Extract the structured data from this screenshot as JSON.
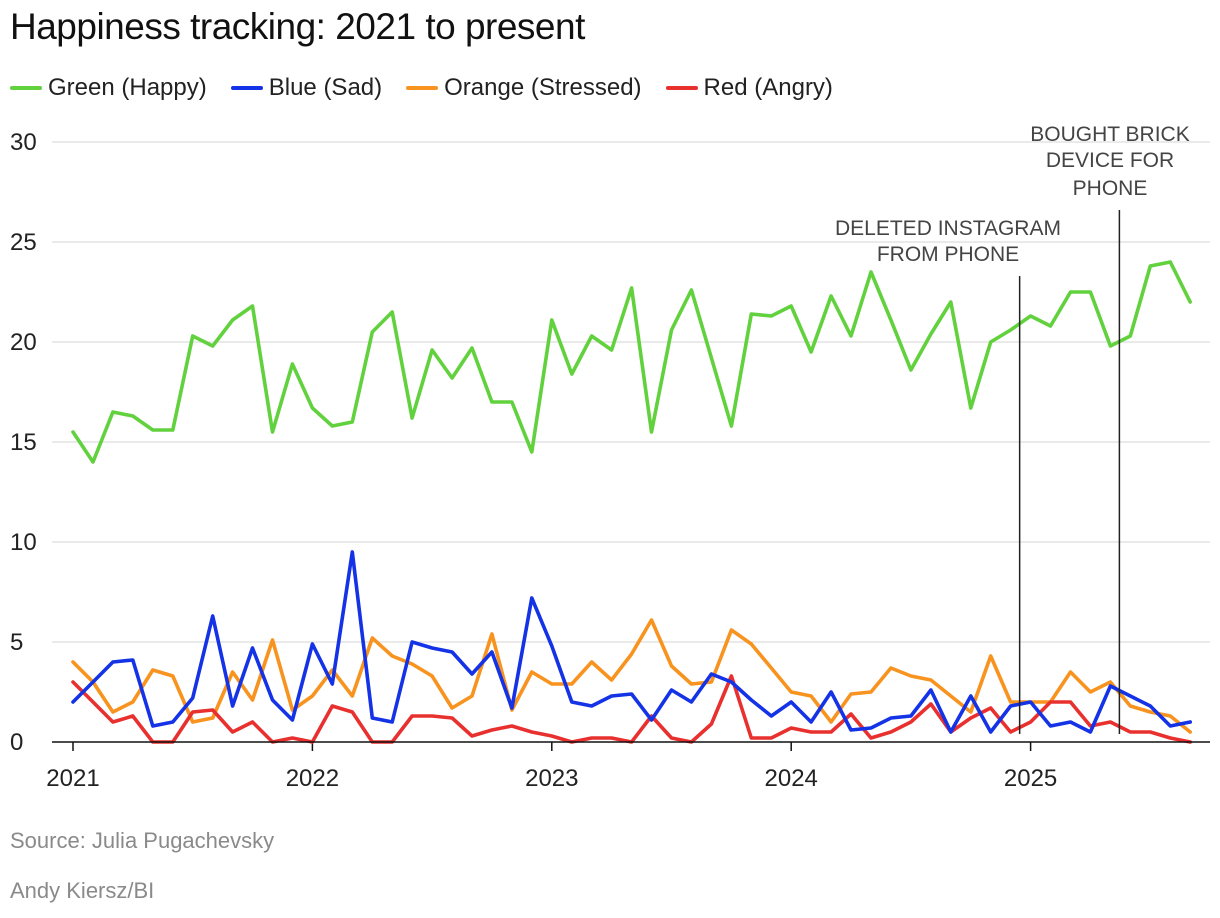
{
  "chart_data": {
    "type": "line",
    "title": "Happiness tracking: 2021 to present",
    "xlabel": "",
    "ylabel": "",
    "x_ticks": [
      "2021",
      "2022",
      "2023",
      "2024",
      "2025"
    ],
    "y_ticks": [
      "0",
      "5",
      "10",
      "15",
      "20",
      "25",
      "30"
    ],
    "ylim": [
      0,
      30
    ],
    "x_start": "2021-01",
    "x_unit": "month",
    "series": [
      {
        "name": "Green (Happy)",
        "color": "#62d13e",
        "values": [
          15.5,
          14.0,
          16.5,
          16.3,
          15.6,
          15.6,
          20.3,
          19.8,
          21.1,
          21.8,
          15.5,
          18.9,
          16.7,
          15.8,
          16.0,
          20.5,
          21.5,
          16.2,
          19.6,
          18.2,
          19.7,
          17.0,
          17.0,
          14.5,
          21.1,
          18.4,
          20.3,
          19.6,
          22.7,
          15.5,
          20.6,
          22.6,
          19.2,
          15.8,
          21.4,
          21.3,
          21.8,
          19.5,
          22.3,
          20.3,
          23.5,
          21.1,
          18.6,
          20.4,
          22.0,
          16.7,
          20.0,
          20.6,
          21.3,
          20.8,
          22.5,
          22.5,
          19.8,
          20.3,
          23.8,
          24.0,
          22.0
        ]
      },
      {
        "name": "Blue (Sad)",
        "color": "#1432e6",
        "values": [
          2.0,
          3.0,
          4.0,
          4.1,
          0.8,
          1.0,
          2.2,
          6.3,
          1.8,
          4.7,
          2.1,
          1.1,
          4.9,
          2.9,
          9.5,
          1.2,
          1.0,
          5.0,
          4.7,
          4.5,
          3.4,
          4.5,
          1.7,
          7.2,
          4.8,
          2.0,
          1.8,
          2.3,
          2.4,
          1.1,
          2.6,
          2.0,
          3.4,
          3.0,
          2.1,
          1.3,
          2.0,
          1.0,
          2.5,
          0.6,
          0.7,
          1.2,
          1.3,
          2.6,
          0.5,
          2.3,
          0.5,
          1.8,
          2.0,
          0.8,
          1.0,
          0.5,
          2.8,
          2.3,
          1.8,
          0.8,
          1.0
        ]
      },
      {
        "name": "Orange (Stressed)",
        "color": "#f7931e",
        "values": [
          4.0,
          3.0,
          1.5,
          2.0,
          3.6,
          3.3,
          1.0,
          1.2,
          3.5,
          2.1,
          5.1,
          1.6,
          2.3,
          3.6,
          2.3,
          5.2,
          4.3,
          3.9,
          3.3,
          1.7,
          2.3,
          5.4,
          1.6,
          3.5,
          2.9,
          2.9,
          4.0,
          3.1,
          4.4,
          6.1,
          3.8,
          2.9,
          3.0,
          5.6,
          4.9,
          3.7,
          2.5,
          2.3,
          1.0,
          2.4,
          2.5,
          3.7,
          3.3,
          3.1,
          2.3,
          1.5,
          4.3,
          2.0,
          2.0,
          2.0,
          3.5,
          2.5,
          3.0,
          1.8,
          1.5,
          1.3,
          0.5
        ]
      },
      {
        "name": "Red (Angry)",
        "color": "#e8302f",
        "values": [
          3.0,
          2.0,
          1.0,
          1.3,
          0.0,
          0.0,
          1.5,
          1.6,
          0.5,
          1.0,
          0.0,
          0.2,
          0.0,
          1.8,
          1.5,
          0.0,
          0.0,
          1.3,
          1.3,
          1.2,
          0.3,
          0.6,
          0.8,
          0.5,
          0.3,
          0.0,
          0.2,
          0.2,
          0.0,
          1.3,
          0.2,
          0.0,
          0.9,
          3.3,
          0.2,
          0.2,
          0.7,
          0.5,
          0.5,
          1.4,
          0.2,
          0.5,
          1.0,
          1.9,
          0.5,
          1.2,
          1.7,
          0.5,
          1.0,
          2.0,
          2.0,
          0.8,
          1.0,
          0.5,
          0.5,
          0.2,
          0.0
        ]
      }
    ],
    "annotations": [
      {
        "index": 47,
        "lines": [
          "DELETED INSTAGRAM",
          "FROM PHONE"
        ]
      },
      {
        "index": 52,
        "lines": [
          "BOUGHT BRICK",
          "DEVICE FOR",
          "PHONE"
        ]
      }
    ],
    "source": "Source: Julia Pugachevsky",
    "credit": "Andy Kiersz/BI"
  }
}
